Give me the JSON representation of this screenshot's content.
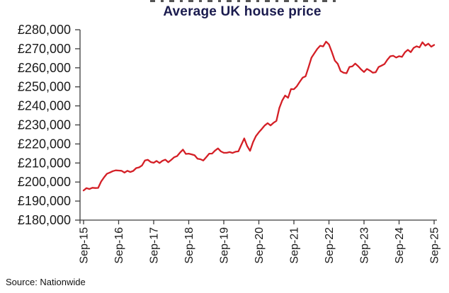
{
  "page": {
    "background": "#ffffff"
  },
  "header": {
    "title": "Average UK house price",
    "title_color": "#1a1b4e"
  },
  "footer": {
    "source": "Source: Nationwide"
  },
  "chart_data": {
    "type": "line",
    "title": "Average UK house price",
    "xlabel": "",
    "ylabel": "",
    "grid": false,
    "legend": "none",
    "frequency": "monthly",
    "x_start": "Sep-15",
    "x_end": "Sep-25",
    "ylim": [
      180000,
      280000
    ],
    "line_color": "#d41f26",
    "axis_color": "#3c3c3c",
    "label_color": "#1a1a1a",
    "y_tick_values": [
      280000,
      270000,
      260000,
      250000,
      240000,
      230000,
      220000,
      210000,
      200000,
      190000,
      180000
    ],
    "y_tick_labels": [
      "£280,000",
      "£270,000",
      "£260,000",
      "£250,000",
      "£240,000",
      "£230,000",
      "£220,000",
      "£210,000",
      "£200,000",
      "£190,000",
      "£180,000"
    ],
    "x_tick_labels": [
      "Sep-15",
      "Sep-16",
      "Sep-17",
      "Sep-18",
      "Sep-19",
      "Sep-20",
      "Sep-21",
      "Sep-22",
      "Sep-23",
      "Sep-24",
      "Sep-25"
    ],
    "values": [
      195585,
      196807,
      196305,
      196999,
      196829,
      196930,
      200251,
      202436,
      204368,
      204968,
      205715,
      206145,
      206015,
      205904,
      204947,
      205898,
      205240,
      205846,
      207308,
      207699,
      208711,
      211301,
      211671,
      210495,
      210116,
      211085,
      209988,
      211156,
      211756,
      210402,
      211625,
      213000,
      213618,
      215444,
      217010,
      214745,
      214922,
      214534,
      214044,
      212281,
      211966,
      211304,
      213102,
      214920,
      214946,
      216515,
      217663,
      216096,
      215352,
      215368,
      215734,
      215282,
      215897,
      216092,
      219583,
      222915,
      218902,
      216403,
      220936,
      224123,
      226129,
      227826,
      229721,
      230920,
      229748,
      231061,
      232134,
      238831,
      242832,
      245432,
      244229,
      248857,
      248742,
      250311,
      252687,
      254822,
      255556,
      260230,
      265312,
      267620,
      269914,
      271613,
      271209,
      273751,
      272259,
      268282,
      263788,
      262068,
      258297,
      257406,
      257122,
      260441,
      260736,
      262239,
      260828,
      259153,
      257808,
      259423,
      258557,
      257443,
      257656,
      260420,
      261142,
      261962,
      264249,
      266064,
      266334,
      265375,
      266094,
      265738,
      268144,
      269426,
      268213,
      270493,
      271316,
      270752,
      273427,
      271619,
      272664,
      271079,
      271995
    ]
  }
}
